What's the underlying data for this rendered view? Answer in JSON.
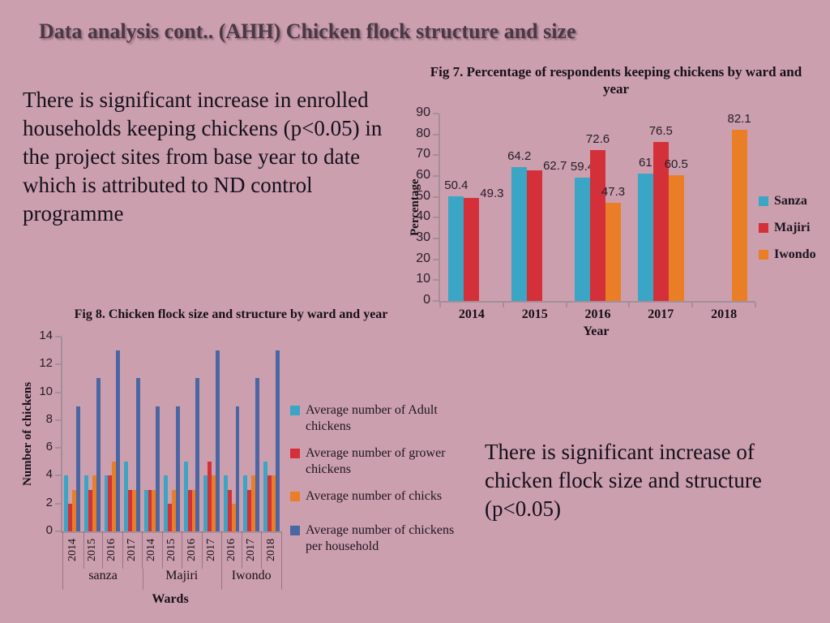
{
  "slide": {
    "title": "Data analysis cont.. (AHH) Chicken flock structure and size",
    "left_text": "There is significant increase in enrolled households keeping chickens (p<0.05) in the project sites from base year to date which is attributed to ND control programme",
    "bottom_right_text": "There is significant increase of chicken flock size and  structure (p<0.05)"
  },
  "colors": {
    "background": "#cc9fae",
    "sanza_teal": "#3aa5c4",
    "majiri_red": "#d4303a",
    "iwondo_orange": "#e97e27",
    "household_blue": "#4a66a3",
    "axis_line": "#a28f9a",
    "title_text": "#4a3845",
    "body_text": "#14101a"
  },
  "chart_data": [
    {
      "id": "fig7",
      "type": "bar",
      "title": "Fig 7. Percentage of respondents keeping chickens by ward and year",
      "xlabel": "Year",
      "ylabel": "Percentage",
      "ylim": [
        0,
        90
      ],
      "ytick_step": 10,
      "grid": false,
      "legend_position": "right",
      "categories": [
        "2014",
        "2015",
        "2016",
        "2017",
        "2018"
      ],
      "series": [
        {
          "name": "Sanza",
          "color_key": "sanza_teal",
          "values": [
            50.4,
            64.2,
            59.4,
            61,
            null
          ]
        },
        {
          "name": "Majiri",
          "color_key": "majiri_red",
          "values": [
            49.3,
            62.7,
            72.6,
            76.5,
            null
          ]
        },
        {
          "name": "Iwondo",
          "color_key": "iwondo_orange",
          "values": [
            null,
            null,
            47.3,
            60.5,
            82.1
          ]
        }
      ]
    },
    {
      "id": "fig8",
      "type": "bar",
      "title": "Fig  8. Chicken flock size and structure by ward and year",
      "xlabel": "Wards",
      "ylabel": "Number of chickens",
      "ylim": [
        0,
        14
      ],
      "ytick_step": 2,
      "grid": false,
      "legend_position": "right",
      "group_labels": [
        {
          "ward": "sanza",
          "years": [
            "2014",
            "2015",
            "2016",
            "2017"
          ]
        },
        {
          "ward": "Majiri",
          "years": [
            "2014",
            "2015",
            "2016",
            "2017"
          ]
        },
        {
          "ward": "Iwondo",
          "years": [
            "2016",
            "2017",
            "2018"
          ]
        }
      ],
      "series": [
        {
          "name": "Average number of Adult chickens",
          "color_key": "sanza_teal",
          "values": [
            4,
            4,
            4,
            5,
            3,
            4,
            5,
            4,
            4,
            4,
            5
          ]
        },
        {
          "name": "Average number of grower chickens",
          "color_key": "majiri_red",
          "values": [
            2,
            3,
            4,
            3,
            3,
            2,
            3,
            5,
            3,
            3,
            4
          ]
        },
        {
          "name": "Average number of chicks",
          "color_key": "iwondo_orange",
          "values": [
            3,
            4,
            5,
            3,
            3,
            3,
            3,
            4,
            2,
            4,
            4
          ]
        },
        {
          "name": "Average number of chickens per household",
          "color_key": "household_blue",
          "values": [
            9,
            11,
            13,
            11,
            9,
            9,
            11,
            13,
            9,
            11,
            13
          ]
        }
      ]
    }
  ]
}
